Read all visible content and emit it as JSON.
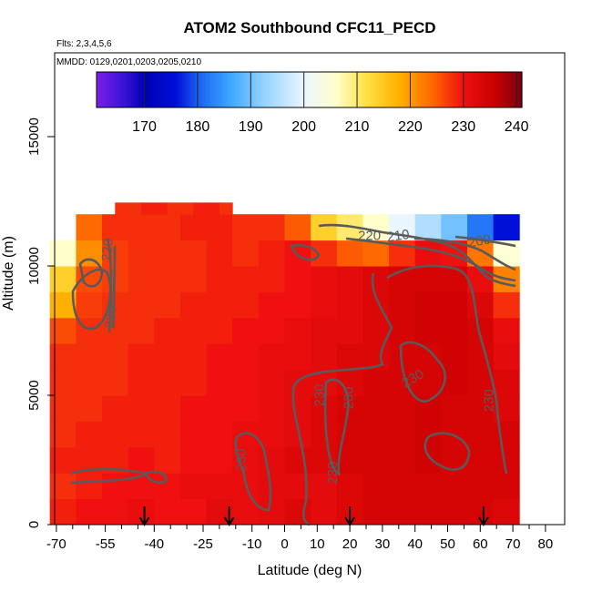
{
  "chart_data": {
    "type": "heatmap",
    "title": "ATOM2 Southbound CFC11_PECD",
    "flights_label": "Flts: 2,3,4,5,6",
    "dates_label": "MMDD: 0129,0201,0203,0205,0210",
    "xlabel": "Latitude (deg N)",
    "ylabel": "Altitude (m)",
    "xlim": [
      -70,
      82
    ],
    "ylim": [
      0,
      17500
    ],
    "x_ticks": [
      -70,
      -55,
      -40,
      -25,
      -10,
      0,
      10,
      20,
      30,
      40,
      50,
      60,
      70,
      80
    ],
    "x_tick_labels": [
      "-70",
      "-55",
      "-40",
      "-25",
      "-10",
      "0",
      "10",
      "20",
      "30",
      "40",
      "50",
      "60",
      "70",
      "80"
    ],
    "x_minor_ticks": [
      -65,
      -60,
      -50,
      -45,
      -35,
      -30,
      -20,
      -15,
      -5,
      5,
      15,
      25,
      35,
      45,
      55,
      65,
      75
    ],
    "y_ticks": [
      0,
      5000,
      10000,
      15000
    ],
    "y_tick_labels": [
      "0",
      "5000",
      "10000",
      "15000"
    ],
    "colorbar": {
      "range": [
        161,
        241
      ],
      "ticks": [
        170,
        180,
        190,
        200,
        210,
        220,
        230,
        240
      ],
      "tick_labels": [
        "170",
        "180",
        "190",
        "200",
        "210",
        "220",
        "230",
        "240"
      ],
      "stops": [
        {
          "v": 161,
          "color": "#7b1fe8"
        },
        {
          "v": 166,
          "color": "#3a14d8"
        },
        {
          "v": 170,
          "color": "#0000b4"
        },
        {
          "v": 176,
          "color": "#0010d8"
        },
        {
          "v": 180,
          "color": "#1b5ff0"
        },
        {
          "v": 186,
          "color": "#3aa6ff"
        },
        {
          "v": 192,
          "color": "#8fd0ff"
        },
        {
          "v": 200,
          "color": "#eaf6ff"
        },
        {
          "v": 206,
          "color": "#ffffcc"
        },
        {
          "v": 212,
          "color": "#ffe040"
        },
        {
          "v": 218,
          "color": "#ffb000"
        },
        {
          "v": 224,
          "color": "#ff6a00"
        },
        {
          "v": 230,
          "color": "#f01010"
        },
        {
          "v": 236,
          "color": "#c80000"
        },
        {
          "v": 241,
          "color": "#7a0010"
        }
      ]
    },
    "arrows_lat": [
      -43,
      -17,
      20,
      61
    ],
    "contour_labels": [
      {
        "text": "220",
        "lat": -53,
        "alt": 10600,
        "rotate": -85
      },
      {
        "text": "220",
        "lat": -52,
        "alt": 8000,
        "rotate": -85
      },
      {
        "text": "220",
        "lat": 26,
        "alt": 11000,
        "rotate": 0
      },
      {
        "text": "210",
        "lat": 35,
        "alt": 11000,
        "rotate": -8
      },
      {
        "text": "200",
        "lat": 60,
        "alt": 10800,
        "rotate": -10
      },
      {
        "text": "230",
        "lat": 12,
        "alt": 5000,
        "rotate": -90
      },
      {
        "text": "230",
        "lat": 21,
        "alt": 4900,
        "rotate": -90
      },
      {
        "text": "230",
        "lat": 40,
        "alt": 5500,
        "rotate": -30
      },
      {
        "text": "230",
        "lat": 64,
        "alt": 4800,
        "rotate": -90
      },
      {
        "text": "230",
        "lat": -12,
        "alt": 2500,
        "rotate": -90
      },
      {
        "text": "230",
        "lat": 16,
        "alt": 2000,
        "rotate": -90
      }
    ],
    "lat_bins": [
      -68,
      -60,
      -52,
      -44,
      -36,
      -28,
      -20,
      -12,
      -4,
      4,
      12,
      20,
      28,
      36,
      44,
      52,
      60,
      68
    ],
    "alt_bins": [
      0,
      1000,
      2000,
      3000,
      4000,
      5000,
      6000,
      7000,
      8000,
      9000,
      10000,
      11000
    ],
    "values": [
      [
        229,
        230,
        230,
        231,
        230,
        230,
        232,
        231,
        232,
        233,
        232,
        233,
        234,
        234,
        234,
        234,
        234,
        233
      ],
      [
        228,
        229,
        230,
        230,
        230,
        231,
        231,
        231,
        232,
        232,
        232,
        233,
        234,
        234,
        234,
        234,
        234,
        234
      ],
      [
        229,
        229,
        229,
        230,
        229,
        230,
        230,
        231,
        232,
        233,
        233,
        234,
        234,
        234,
        235,
        234,
        234,
        234
      ],
      [
        228,
        229,
        229,
        229,
        229,
        230,
        230,
        231,
        231,
        232,
        233,
        234,
        234,
        234,
        235,
        234,
        234,
        234
      ],
      [
        228,
        228,
        229,
        229,
        229,
        230,
        230,
        230,
        231,
        232,
        233,
        234,
        234,
        234,
        235,
        234,
        234,
        233
      ],
      [
        228,
        228,
        228,
        229,
        229,
        229,
        230,
        230,
        231,
        232,
        232,
        233,
        234,
        234,
        234,
        235,
        234,
        233
      ],
      [
        228,
        228,
        228,
        229,
        229,
        229,
        230,
        230,
        231,
        231,
        232,
        233,
        233,
        234,
        234,
        235,
        234,
        232
      ],
      [
        226,
        228,
        228,
        228,
        229,
        229,
        229,
        230,
        230,
        231,
        232,
        232,
        233,
        234,
        235,
        235,
        234,
        231
      ],
      [
        218,
        227,
        228,
        228,
        228,
        229,
        229,
        229,
        230,
        230,
        231,
        232,
        233,
        234,
        235,
        235,
        233,
        228
      ],
      [
        214,
        226,
        227,
        228,
        228,
        228,
        229,
        229,
        229,
        230,
        231,
        232,
        233,
        234,
        234,
        234,
        231,
        222
      ],
      [
        206,
        221,
        227,
        228,
        228,
        228,
        229,
        228,
        229,
        230,
        228,
        225,
        224,
        228,
        231,
        230,
        223,
        205
      ],
      [
        null,
        224,
        228,
        228,
        228,
        229,
        229,
        228,
        228,
        225,
        214,
        210,
        206,
        200,
        195,
        190,
        182,
        176
      ]
    ]
  }
}
